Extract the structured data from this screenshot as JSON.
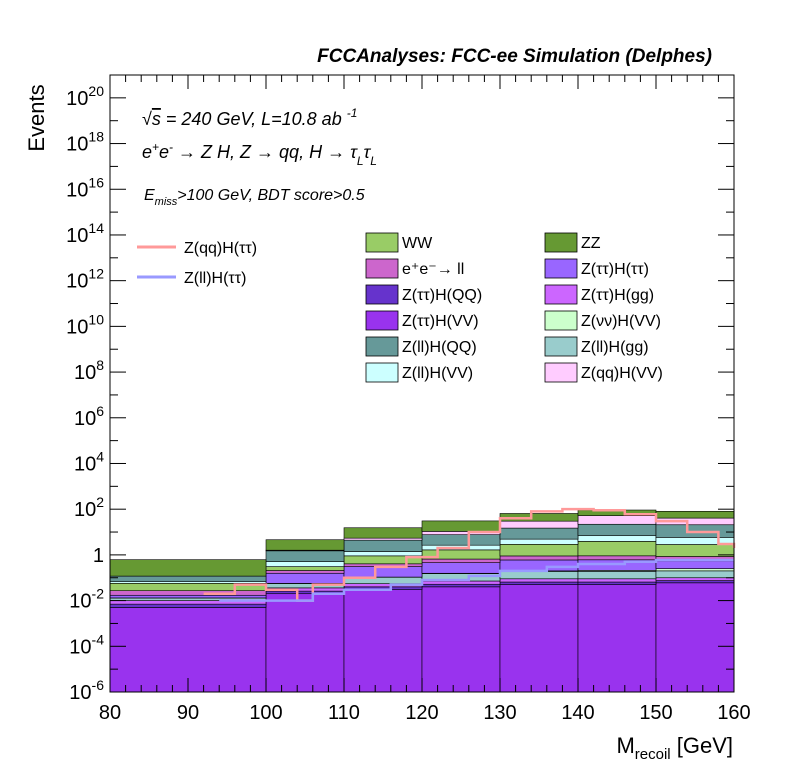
{
  "chart_data": {
    "type": "bar",
    "stacked": true,
    "title": "FCCAnalyses: FCC-ee Simulation (Delphes)",
    "xlabel": "M_recoil [GeV]",
    "ylabel": "Events",
    "xlim": [
      80,
      160
    ],
    "ylim": [
      1e-06,
      1e+21
    ],
    "log_y": true,
    "annotations": {
      "line1": "√s = 240 GeV, L=10.8 ab⁻¹",
      "line2": "e⁺e⁻ → Z H, Z → qq, H → τ_L τ_L",
      "line3": "E_miss>100 GeV, BDT score>0.5"
    },
    "x_ticks": [
      "80",
      "90",
      "100",
      "110",
      "120",
      "130",
      "140",
      "150",
      "160"
    ],
    "y_ticks": [
      "10^-6",
      "10^-4",
      "10^-2",
      "1",
      "10^2",
      "10^4",
      "10^6",
      "10^8",
      "10^10",
      "10^12",
      "10^14",
      "10^16",
      "10^18",
      "10^20"
    ],
    "bin_edges": [
      80,
      100,
      110,
      120,
      130,
      140,
      150,
      160
    ],
    "stack_order_bottom_to_top": [
      "Z(ττ)H(VV)",
      "Z(ττ)H(QQ)",
      "Z(ττ)H(gg)",
      "Z(ll)H(gg)",
      "Z(νν)H(VV)",
      "Z(ττ)H(ττ)",
      "e⁺e⁻→ ll",
      "WW",
      "Z(ll)H(VV)",
      "Z(ll)H(QQ)",
      "Z(qq)H(VV)",
      "ZZ"
    ],
    "stacked_series": [
      {
        "name": "Z(ττ)H(VV)",
        "color": "#9933ee",
        "values": [
          0.005,
          0.02,
          0.03,
          0.04,
          0.05,
          0.05,
          0.06
        ]
      },
      {
        "name": "Z(ττ)H(QQ)",
        "color": "#6633cc",
        "values": [
          0.002,
          0.006,
          0.01,
          0.012,
          0.015,
          0.015,
          0.015
        ]
      },
      {
        "name": "Z(ττ)H(gg)",
        "color": "#cc66ff",
        "values": [
          0.003,
          0.01,
          0.015,
          0.02,
          0.025,
          0.025,
          0.025
        ]
      },
      {
        "name": "Z(ll)H(gg)",
        "color": "#99cccc",
        "values": [
          0.003,
          0.02,
          0.05,
          0.08,
          0.1,
          0.1,
          0.1
        ]
      },
      {
        "name": "Z(νν)H(VV)",
        "color": "#ccffcc",
        "values": [
          0.0001,
          0.001,
          0.002,
          0.005,
          0.01,
          0.02,
          0.05
        ]
      },
      {
        "name": "Z(ττ)H(ττ)",
        "color": "#9966ff",
        "values": [
          0.004,
          0.1,
          0.2,
          0.3,
          0.4,
          0.4,
          0.3
        ]
      },
      {
        "name": "e⁺e⁻→ ll",
        "color": "#cc66cc",
        "values": [
          0.01,
          0.05,
          0.1,
          0.2,
          0.3,
          0.3,
          0.3
        ]
      },
      {
        "name": "WW",
        "color": "#99cc66",
        "values": [
          0.03,
          0.1,
          0.5,
          1,
          2,
          3,
          2
        ]
      },
      {
        "name": "Z(ll)H(VV)",
        "color": "#ccffff",
        "values": [
          0.01,
          0.2,
          0.5,
          1,
          2,
          3,
          3
        ]
      },
      {
        "name": "Z(ll)H(QQ)",
        "color": "#669999",
        "values": [
          0.05,
          1,
          3,
          5,
          10,
          15,
          15
        ]
      },
      {
        "name": "Z(qq)H(VV)",
        "color": "#ffccff",
        "values": [
          0.001,
          0.1,
          1,
          3,
          15,
          30,
          20
        ]
      },
      {
        "name": "ZZ",
        "color": "#669933",
        "values": [
          0.5,
          3,
          10,
          20,
          35,
          40,
          40
        ]
      }
    ],
    "line_series": [
      {
        "name": "Z(qq)H(ττ)",
        "color": "#ff9999",
        "x": [
          92,
          96,
          100,
          104,
          106,
          110,
          114,
          118,
          122,
          126,
          130,
          134,
          138,
          142,
          146,
          150,
          154,
          158,
          160
        ],
        "values": [
          0.02,
          0.05,
          0.03,
          0.01,
          0.05,
          0.1,
          0.3,
          0.8,
          2,
          10,
          40,
          80,
          100,
          90,
          60,
          30,
          10,
          3,
          2
        ]
      },
      {
        "name": "Z(ll)H(ττ)",
        "color": "#9999ff",
        "x": [
          94,
          100,
          106,
          110,
          116,
          120,
          126,
          130,
          136,
          140,
          146,
          150,
          156,
          160
        ],
        "values": [
          0.01,
          0.01,
          0.02,
          0.03,
          0.05,
          0.08,
          0.12,
          0.2,
          0.3,
          0.4,
          0.5,
          0.6,
          0.6,
          0.6
        ]
      }
    ],
    "legend_left": [
      "Z(qq)H(ττ)",
      "Z(ll)H(ττ)"
    ],
    "legend_boxes": [
      {
        "name": "WW",
        "color": "#99cc66"
      },
      {
        "name": "ZZ",
        "color": "#669933"
      },
      {
        "name": "e⁺e⁻→ ll",
        "color": "#cc66cc"
      },
      {
        "name": "Z(ττ)H(ττ)",
        "color": "#9966ff"
      },
      {
        "name": "Z(ττ)H(QQ)",
        "color": "#6633cc"
      },
      {
        "name": "Z(ττ)H(gg)",
        "color": "#cc66ff"
      },
      {
        "name": "Z(ττ)H(VV)",
        "color": "#9933ee"
      },
      {
        "name": "Z(νν)H(VV)",
        "color": "#ccffcc"
      },
      {
        "name": "Z(ll)H(QQ)",
        "color": "#669999"
      },
      {
        "name": "Z(ll)H(gg)",
        "color": "#99cccc"
      },
      {
        "name": "Z(ll)H(VV)",
        "color": "#ccffff"
      },
      {
        "name": "Z(qq)H(VV)",
        "color": "#ffccff"
      }
    ]
  }
}
